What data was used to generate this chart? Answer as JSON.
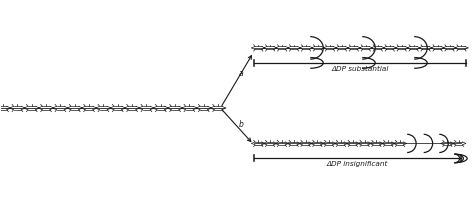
{
  "bg_color": "#ffffff",
  "text_color": "#1a1a1a",
  "chain_color": "#1a1a1a",
  "arrow_color": "#1a1a1a",
  "bracket_color": "#1a1a1a",
  "label_a": "a",
  "label_b": "b",
  "label_dp_substantial": "ΔDP substantial",
  "label_dp_insignificant": "ΔDP insignificant",
  "fig_width": 4.74,
  "fig_height": 2.16,
  "dpi": 100
}
